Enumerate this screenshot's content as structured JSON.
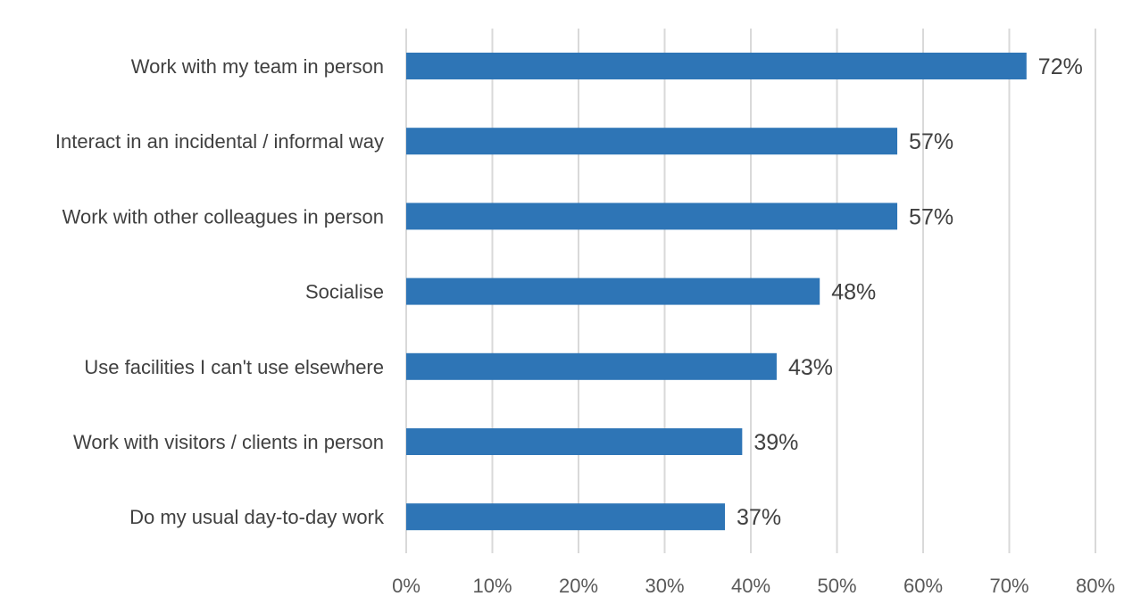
{
  "chart_data": {
    "type": "bar",
    "orientation": "horizontal",
    "categories": [
      "Work with my team in person",
      "Interact in an incidental / informal way",
      "Work with other colleagues in person",
      "Socialise",
      "Use facilities I can't use elsewhere",
      "Work with visitors / clients in person",
      "Do my usual day-to-day work"
    ],
    "values": [
      72,
      57,
      57,
      48,
      43,
      39,
      37
    ],
    "value_labels": [
      "72%",
      "57%",
      "57%",
      "48%",
      "43%",
      "39%",
      "37%"
    ],
    "xlim": [
      0,
      80
    ],
    "x_ticks": [
      0,
      10,
      20,
      30,
      40,
      50,
      60,
      70,
      80
    ],
    "x_tick_labels": [
      "0%",
      "10%",
      "20%",
      "30%",
      "40%",
      "50%",
      "60%",
      "70%",
      "80%"
    ],
    "grid": "vertical",
    "legend": "none",
    "colors": {
      "bar": "#2e75b6",
      "grid": "#d9d9d9",
      "text": "#404040",
      "tick_text": "#595959"
    }
  }
}
